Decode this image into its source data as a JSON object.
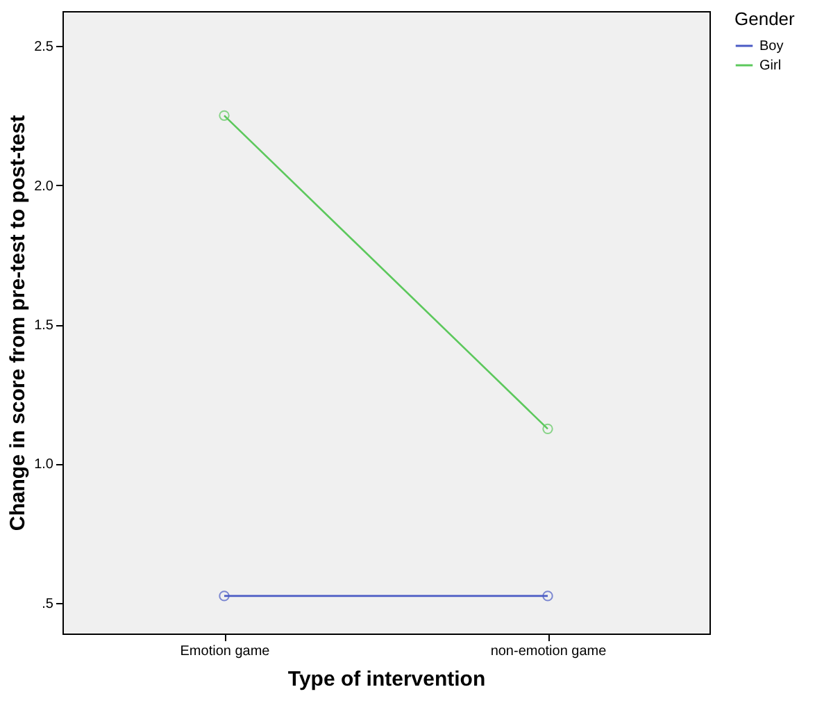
{
  "chart_data": {
    "type": "line",
    "xlabel": "Type of intervention",
    "ylabel": "Change in score from pre-test to post-test",
    "legend_title": "Gender",
    "categories": [
      "Emotion game",
      "non-emotion game"
    ],
    "series": [
      {
        "name": "Boy",
        "color": "#4a5bc4",
        "values": [
          0.525,
          0.525
        ]
      },
      {
        "name": "Girl",
        "color": "#5cc85c",
        "values": [
          2.25,
          1.125
        ]
      }
    ],
    "ylim": [
      0.39,
      2.625
    ],
    "yticks": [
      {
        "value": 0.5,
        "label": ".5"
      },
      {
        "value": 1.0,
        "label": "1.0"
      },
      {
        "value": 1.5,
        "label": "1.5"
      },
      {
        "value": 2.0,
        "label": "2.0"
      },
      {
        "value": 2.5,
        "label": "2.5"
      }
    ],
    "grid": false,
    "legend": "top right",
    "marker": "circle",
    "line_style": "solid"
  }
}
